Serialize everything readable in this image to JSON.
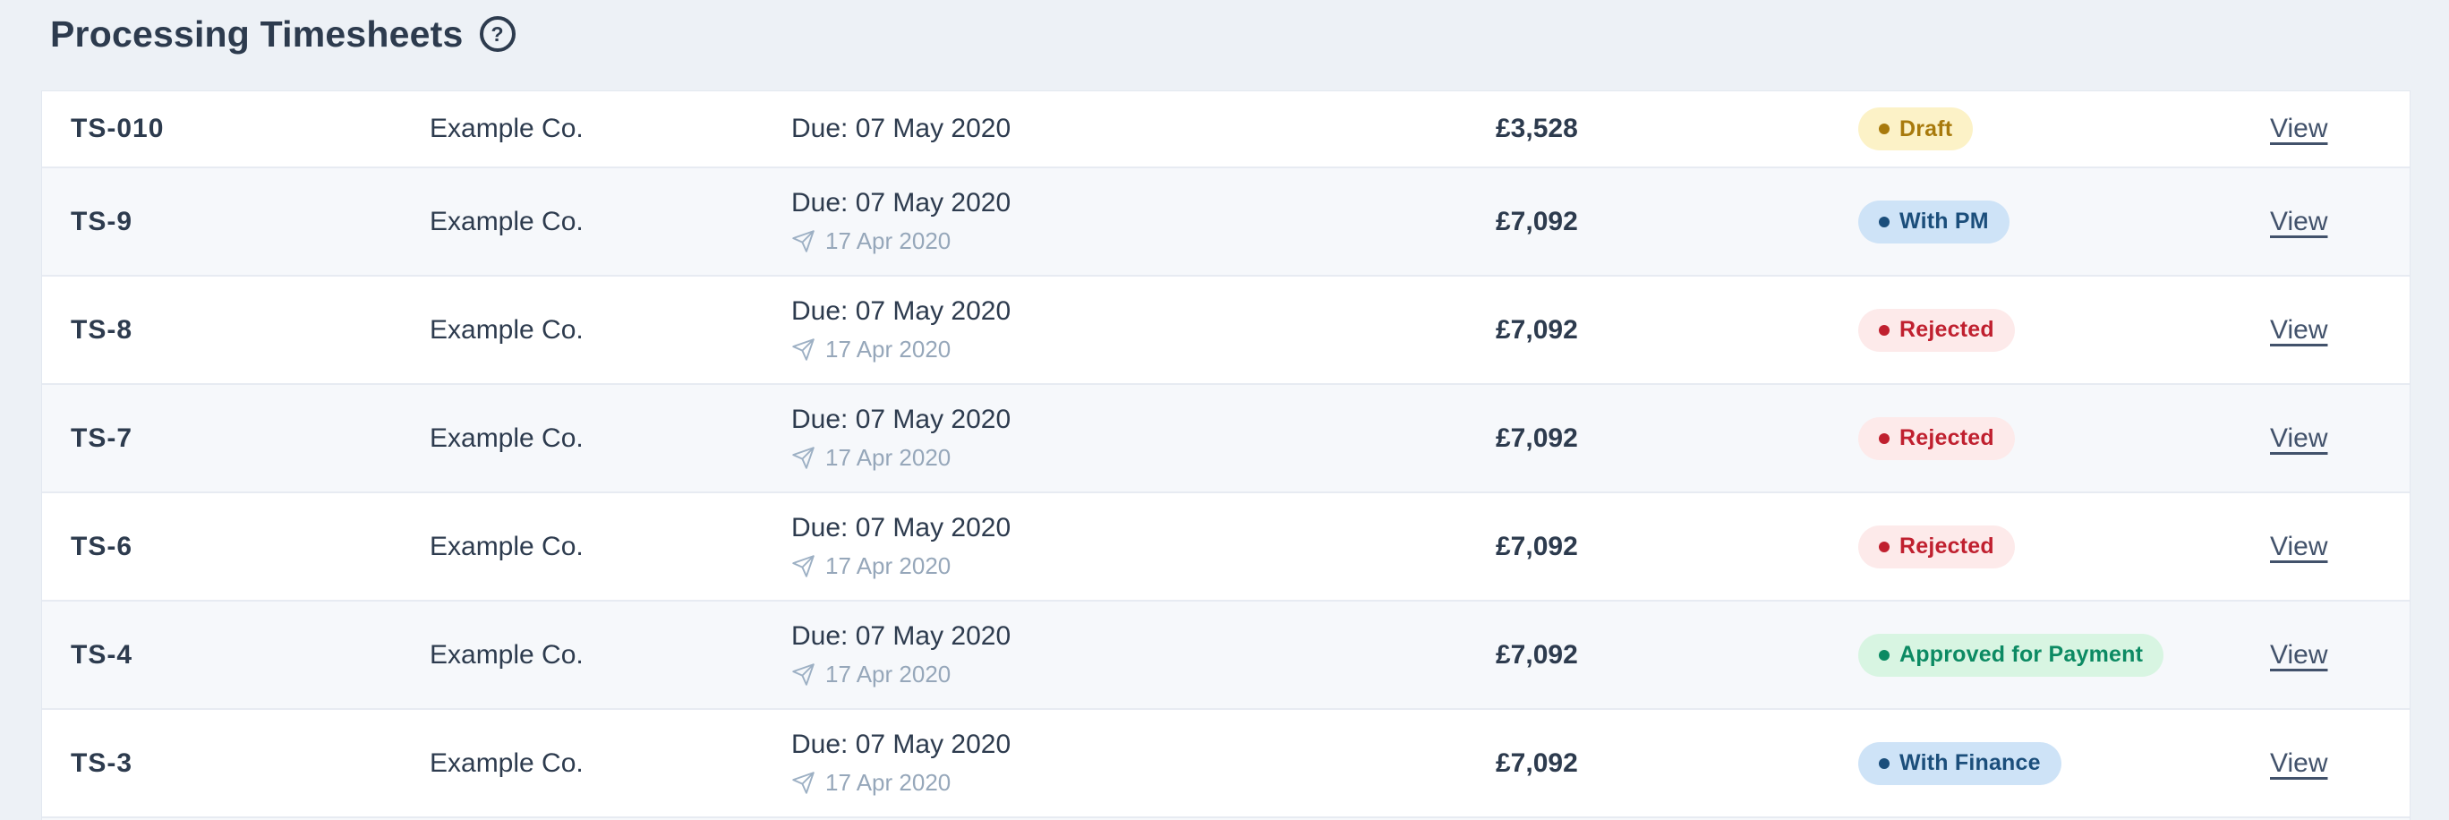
{
  "header": {
    "title": "Processing Timesheets",
    "help_label": "?"
  },
  "colors": {
    "page_bg": "#edf1f6",
    "card_bg": "#ffffff",
    "alt_row_bg": "#f6f8fb",
    "divider": "#e7ebf2",
    "text": "#2d3b4e",
    "muted_text": "#96a7ba",
    "link": "#42526b",
    "badges": {
      "draft": {
        "bg": "#fcf2c7",
        "fg": "#a87a0c"
      },
      "blue": {
        "bg": "#cee3f7",
        "fg": "#1b4e7b"
      },
      "red": {
        "bg": "#fdeaea",
        "fg": "#c0202f"
      },
      "green": {
        "bg": "#d8f5e2",
        "fg": "#0c8a63"
      }
    }
  },
  "table": {
    "rows": [
      {
        "id": "TS-010",
        "company": "Example Co.",
        "due_label": "Due: 07 May 2020",
        "sent_date": "",
        "amount": "£3,528",
        "status_label": "Draft",
        "status_type": "draft",
        "action_label": "View"
      },
      {
        "id": "TS-9",
        "company": "Example Co.",
        "due_label": "Due: 07 May 2020",
        "sent_date": "17 Apr 2020",
        "amount": "£7,092",
        "status_label": "With PM",
        "status_type": "blue",
        "action_label": "View"
      },
      {
        "id": "TS-8",
        "company": "Example Co.",
        "due_label": "Due: 07 May 2020",
        "sent_date": "17 Apr 2020",
        "amount": "£7,092",
        "status_label": "Rejected",
        "status_type": "red",
        "action_label": "View"
      },
      {
        "id": "TS-7",
        "company": "Example Co.",
        "due_label": "Due: 07 May 2020",
        "sent_date": "17 Apr 2020",
        "amount": "£7,092",
        "status_label": "Rejected",
        "status_type": "red",
        "action_label": "View"
      },
      {
        "id": "TS-6",
        "company": "Example Co.",
        "due_label": "Due: 07 May 2020",
        "sent_date": "17 Apr 2020",
        "amount": "£7,092",
        "status_label": "Rejected",
        "status_type": "red",
        "action_label": "View"
      },
      {
        "id": "TS-4",
        "company": "Example Co.",
        "due_label": "Due: 07 May 2020",
        "sent_date": "17 Apr 2020",
        "amount": "£7,092",
        "status_label": "Approved for Payment",
        "status_type": "green",
        "action_label": "View"
      },
      {
        "id": "TS-3",
        "company": "Example Co.",
        "due_label": "Due: 07 May 2020",
        "sent_date": "17 Apr 2020",
        "amount": "£7,092",
        "status_label": "With Finance",
        "status_type": "blue",
        "action_label": "View"
      }
    ]
  }
}
